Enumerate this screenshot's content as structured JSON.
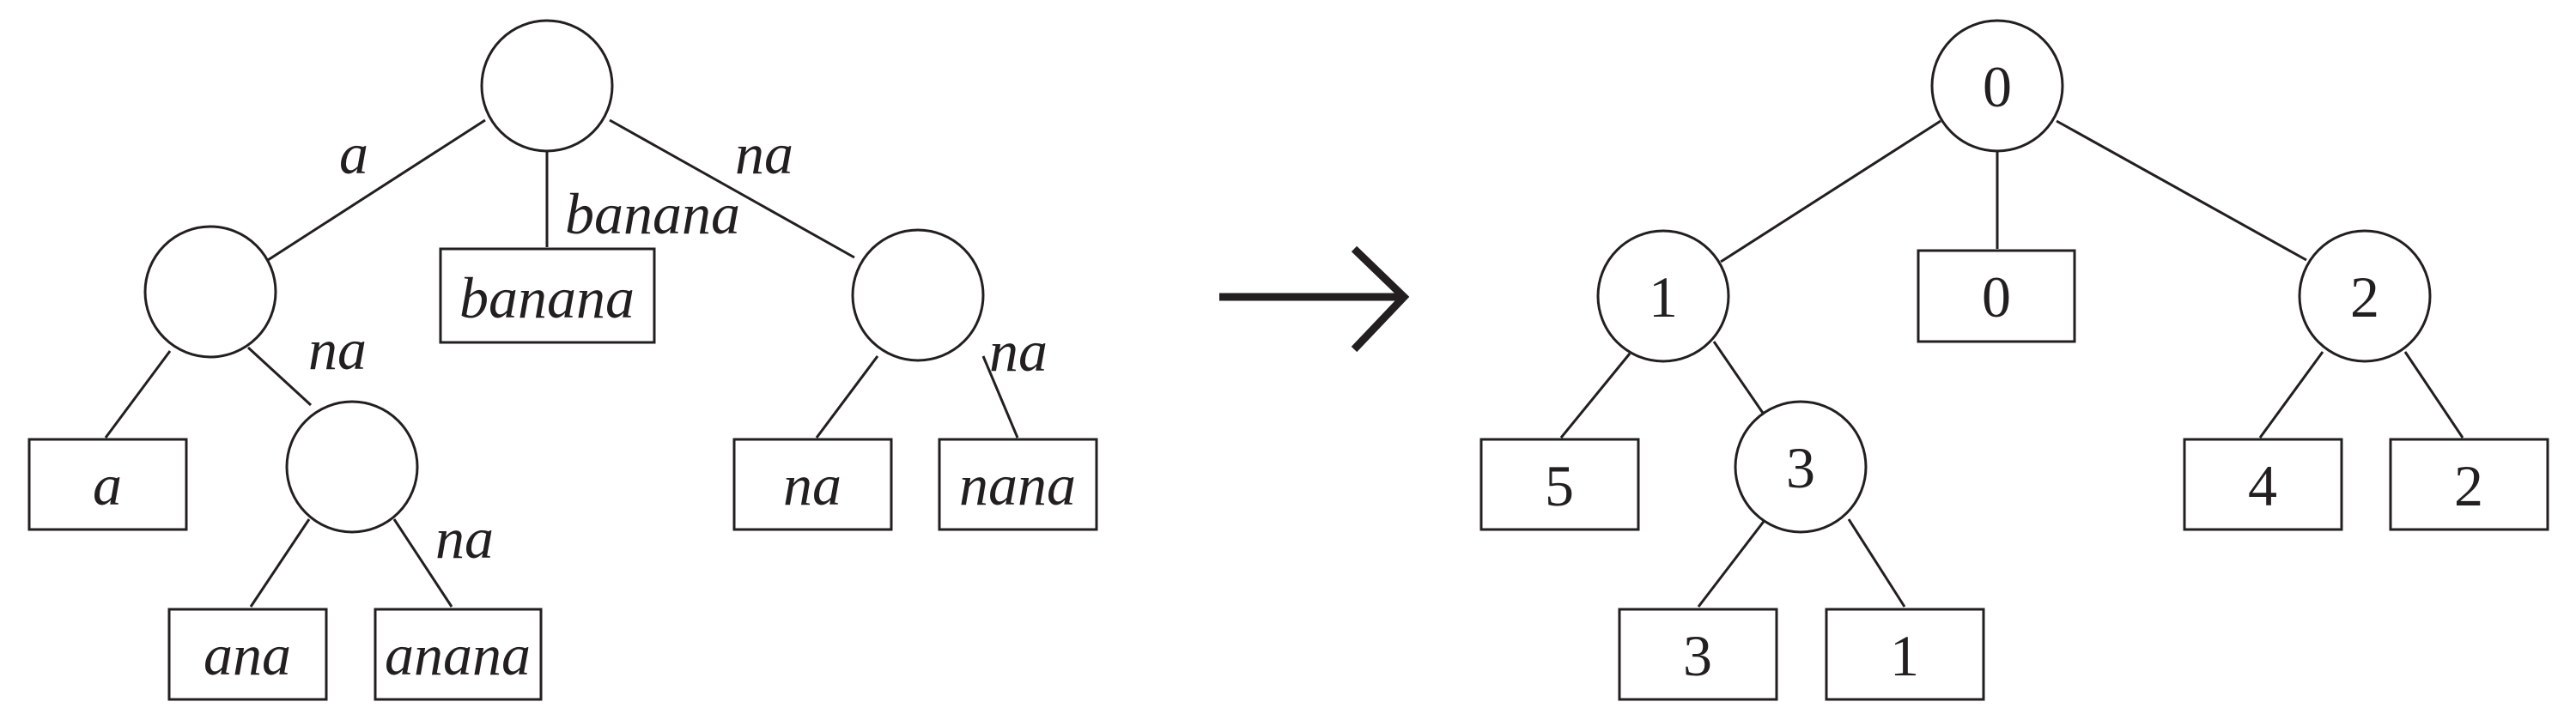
{
  "left_tree": {
    "edge_labels": {
      "root_to_a": "a",
      "root_to_banana": "banana",
      "root_to_na": "na",
      "a_to_ana": "na",
      "ana_to_anana": "na",
      "na_to_nana": "na"
    },
    "leaves": {
      "banana": "banana",
      "a": "a",
      "ana": "ana",
      "anana": "anana",
      "na": "na",
      "nana": "nana"
    }
  },
  "right_tree": {
    "internal_nodes": {
      "root": "0",
      "left": "1",
      "right": "2",
      "left_right": "3"
    },
    "leaves": {
      "mid": "0",
      "left_left": "5",
      "left_right_left": "3",
      "left_right_right": "1",
      "right_left": "4",
      "right_right": "2"
    }
  },
  "colors": {
    "ink": "#231f20",
    "background": "#ffffff"
  }
}
